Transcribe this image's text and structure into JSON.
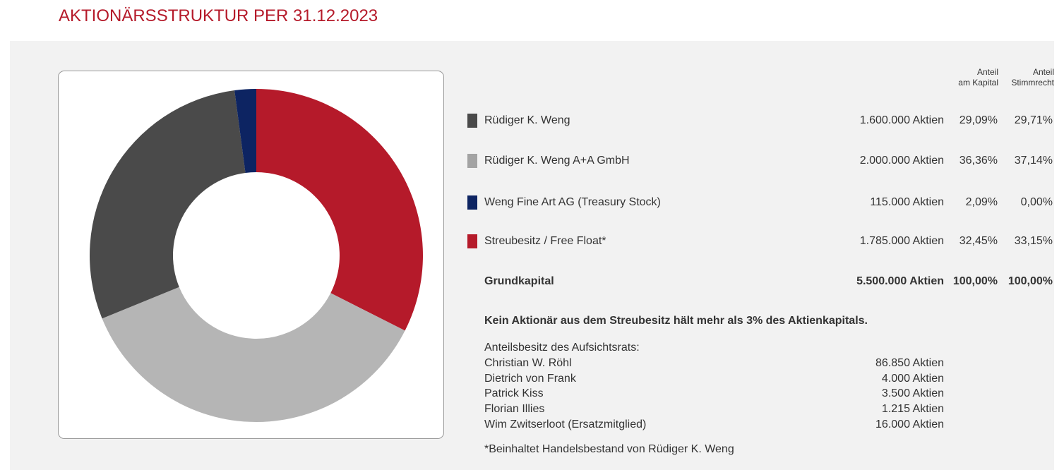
{
  "title": "AKTIONÄRSSTRUKTUR PER 31.12.2023",
  "headers": {
    "kapital_line1": "Anteil",
    "kapital_line2": "am Kapital",
    "stimm_line1": "Anteil",
    "stimm_line2": "Stimmrecht"
  },
  "colors": {
    "title": "#b51a2a",
    "weng": "#4a4a4a",
    "gmbh": "#b5b5b5",
    "treasury": "#0d2462",
    "freefloat": "#b51a2a"
  },
  "holders": [
    {
      "name": "Rüdiger K. Weng",
      "shares": "1.600.000 Aktien",
      "kapital": "29,09%",
      "stimm": "29,71%",
      "color": "#4a4a4a"
    },
    {
      "name": "Rüdiger K. Weng A+A GmbH",
      "shares": "2.000.000 Aktien",
      "kapital": "36,36%",
      "stimm": "37,14%",
      "color": "#a3a3a3"
    },
    {
      "name": "Weng Fine Art AG (Treasury Stock)",
      "shares": "115.000 Aktien",
      "kapital": "2,09%",
      "stimm": "0,00%",
      "color": "#0d2462"
    },
    {
      "name": "Streubesitz / Free Float*",
      "shares": "1.785.000 Aktien",
      "kapital": "32,45%",
      "stimm": "33,15%",
      "color": "#b51a2a"
    }
  ],
  "total": {
    "name": "Grundkapital",
    "shares": "5.500.000 Aktien",
    "kapital": "100,00%",
    "stimm": "100,00%"
  },
  "note": "Kein Aktionär aus dem Streubesitz hält mehr als 3% des Aktienkapitals.",
  "board": {
    "title": "Anteilsbesitz des Aufsichtsrats:",
    "members": [
      {
        "name": "Christian W. Röhl",
        "shares": "86.850 Aktien"
      },
      {
        "name": "Dietrich von Frank",
        "shares": "4.000 Aktien"
      },
      {
        "name": "Patrick Kiss",
        "shares": "3.500 Aktien"
      },
      {
        "name": "Florian Illies",
        "shares": "1.215 Aktien"
      },
      {
        "name": "Wim Zwitserloot (Ersatzmitglied)",
        "shares": "16.000 Aktien"
      }
    ]
  },
  "footnote": "*Beinhaltet Handelsbestand von Rüdiger K. Weng",
  "chart_data": {
    "type": "pie",
    "categories": [
      "Streubesitz / Free Float*",
      "Rüdiger K. Weng A+A GmbH",
      "Rüdiger K. Weng",
      "Weng Fine Art AG (Treasury Stock)"
    ],
    "values": [
      32.45,
      36.36,
      29.09,
      2.09
    ],
    "colors": [
      "#b51a2a",
      "#b5b5b5",
      "#4a4a4a",
      "#0d2462"
    ],
    "donut": true
  }
}
